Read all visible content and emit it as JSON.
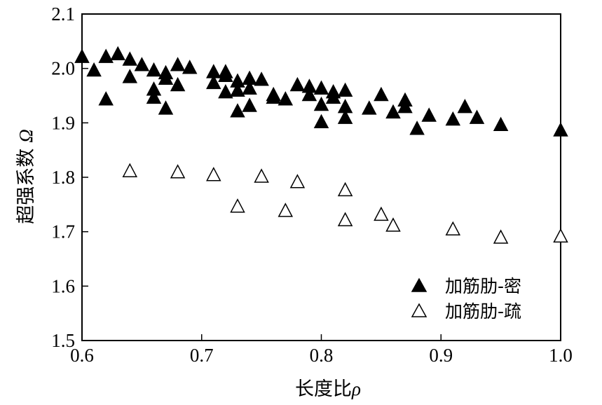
{
  "chart_data": {
    "type": "scatter",
    "xlabel": "长度比",
    "xlabel_symbol": "ρ",
    "ylabel": "超强系数",
    "ylabel_symbol": "Ω",
    "xlim": [
      0.6,
      1.0
    ],
    "ylim": [
      1.5,
      2.1
    ],
    "x_ticks": [
      "0.6",
      "0.7",
      "0.8",
      "0.9",
      "1.0"
    ],
    "y_ticks": [
      "1.5",
      "1.6",
      "1.7",
      "1.8",
      "1.9",
      "2.0",
      "2.1"
    ],
    "grid": false,
    "legend_position": "bottom-right",
    "series": [
      {
        "name": "加筋肋-密",
        "marker": "filled-triangle",
        "color": "#000000",
        "points": [
          [
            0.6,
            2.02
          ],
          [
            0.61,
            1.995
          ],
          [
            0.62,
            2.02
          ],
          [
            0.62,
            1.942
          ],
          [
            0.63,
            2.025
          ],
          [
            0.64,
            2.015
          ],
          [
            0.64,
            1.983
          ],
          [
            0.65,
            2.005
          ],
          [
            0.66,
            1.995
          ],
          [
            0.66,
            1.96
          ],
          [
            0.66,
            1.945
          ],
          [
            0.67,
            1.99
          ],
          [
            0.67,
            1.98
          ],
          [
            0.67,
            1.925
          ],
          [
            0.68,
            2.005
          ],
          [
            0.68,
            1.968
          ],
          [
            0.69,
            2.0
          ],
          [
            0.71,
            1.992
          ],
          [
            0.71,
            1.972
          ],
          [
            0.72,
            1.992
          ],
          [
            0.72,
            1.985
          ],
          [
            0.72,
            1.955
          ],
          [
            0.73,
            1.975
          ],
          [
            0.73,
            1.958
          ],
          [
            0.73,
            1.92
          ],
          [
            0.74,
            1.98
          ],
          [
            0.74,
            1.962
          ],
          [
            0.74,
            1.93
          ],
          [
            0.75,
            1.978
          ],
          [
            0.76,
            1.95
          ],
          [
            0.76,
            1.945
          ],
          [
            0.77,
            1.942
          ],
          [
            0.78,
            1.968
          ],
          [
            0.79,
            1.965
          ],
          [
            0.79,
            1.95
          ],
          [
            0.8,
            1.962
          ],
          [
            0.8,
            1.932
          ],
          [
            0.8,
            1.9
          ],
          [
            0.81,
            1.955
          ],
          [
            0.81,
            1.945
          ],
          [
            0.82,
            1.958
          ],
          [
            0.82,
            1.928
          ],
          [
            0.82,
            1.908
          ],
          [
            0.84,
            1.925
          ],
          [
            0.85,
            1.95
          ],
          [
            0.86,
            1.918
          ],
          [
            0.87,
            1.94
          ],
          [
            0.87,
            1.928
          ],
          [
            0.88,
            1.888
          ],
          [
            0.89,
            1.912
          ],
          [
            0.91,
            1.905
          ],
          [
            0.92,
            1.928
          ],
          [
            0.93,
            1.908
          ],
          [
            0.95,
            1.895
          ],
          [
            1.0,
            1.885
          ]
        ]
      },
      {
        "name": "加筋肋-疏",
        "marker": "hollow-triangle",
        "color": "#000000",
        "points": [
          [
            0.64,
            1.81
          ],
          [
            0.68,
            1.808
          ],
          [
            0.71,
            1.803
          ],
          [
            0.73,
            1.745
          ],
          [
            0.75,
            1.8
          ],
          [
            0.77,
            1.737
          ],
          [
            0.78,
            1.79
          ],
          [
            0.82,
            1.775
          ],
          [
            0.82,
            1.72
          ],
          [
            0.85,
            1.73
          ],
          [
            0.86,
            1.71
          ],
          [
            0.91,
            1.703
          ],
          [
            0.95,
            1.688
          ],
          [
            1.0,
            1.69
          ]
        ]
      }
    ]
  }
}
